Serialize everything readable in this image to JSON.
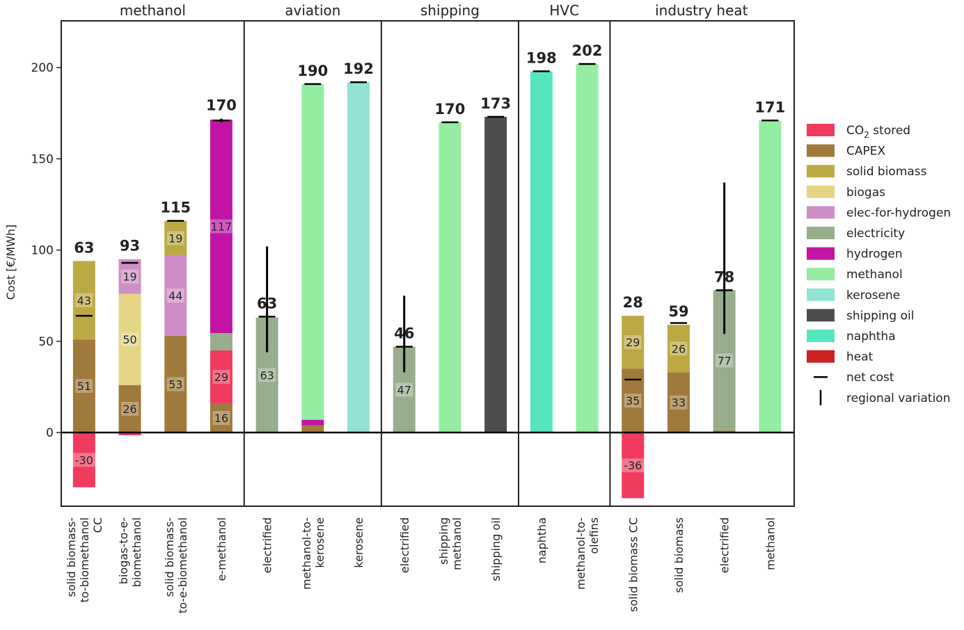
{
  "chart_data": {
    "type": "bar",
    "stacked": true,
    "ylabel": "Cost [€/MWh]",
    "ylim": [
      -40,
      225
    ],
    "yticks": [
      0,
      50,
      100,
      150,
      200
    ],
    "legend_position": "right",
    "colors": {
      "CO2 stored": "#f03b5e",
      "CAPEX": "#a07a3c",
      "solid biomass": "#bda944",
      "biogas": "#e3d584",
      "elec-for-hydrogen": "#cf8fc6",
      "electricity": "#97ad8c",
      "hydrogen": "#c214a4",
      "methanol": "#94eda1",
      "kerosene": "#93e3d4",
      "shipping oil": "#4d4d4d",
      "naphtha": "#55e6bf",
      "heat": "#cc2222"
    },
    "legend": [
      {
        "key": "CO2 stored",
        "label": "CO",
        "sub": "2",
        "label_rest": " stored",
        "kind": "patch"
      },
      {
        "key": "CAPEX",
        "label": "CAPEX",
        "kind": "patch"
      },
      {
        "key": "solid biomass",
        "label": "solid biomass",
        "kind": "patch"
      },
      {
        "key": "biogas",
        "label": "biogas",
        "kind": "patch"
      },
      {
        "key": "elec-for-hydrogen",
        "label": "elec-for-hydrogen",
        "kind": "patch"
      },
      {
        "key": "electricity",
        "label": "electricity",
        "kind": "patch"
      },
      {
        "key": "hydrogen",
        "label": "hydrogen",
        "kind": "patch"
      },
      {
        "key": "methanol",
        "label": "methanol",
        "kind": "patch"
      },
      {
        "key": "kerosene",
        "label": "kerosene",
        "kind": "patch"
      },
      {
        "key": "shipping oil",
        "label": "shipping oil",
        "kind": "patch"
      },
      {
        "key": "naphtha",
        "label": "naphtha",
        "kind": "patch"
      },
      {
        "key": "heat",
        "label": "heat",
        "kind": "patch"
      },
      {
        "key": "net cost",
        "label": "net cost",
        "kind": "hline"
      },
      {
        "key": "regional variation",
        "label": "regional variation",
        "kind": "vline"
      }
    ],
    "sectors": [
      {
        "name": "methanol",
        "bars": [
          {
            "label": [
              "solid biomass-",
              "to-biomethanol",
              "CC"
            ],
            "segments": [
              {
                "c": "CAPEX",
                "v": 51,
                "label": "51"
              },
              {
                "c": "solid biomass",
                "v": 43,
                "label": "43"
              },
              {
                "c": "CO2 stored",
                "v": -30,
                "label": "-30"
              }
            ],
            "total": 63,
            "net": 64
          },
          {
            "label": [
              "biogas-to-e-",
              "biomethanol"
            ],
            "segments": [
              {
                "c": "CAPEX",
                "v": 26,
                "label": "26"
              },
              {
                "c": "biogas",
                "v": 50,
                "label": "50"
              },
              {
                "c": "elec-for-hydrogen",
                "v": 19,
                "label": "19"
              },
              {
                "c": "CO2 stored",
                "v": -1.5
              }
            ],
            "total": 93,
            "net": 93
          },
          {
            "label": [
              "solid biomass-",
              "to-e-biomethanol"
            ],
            "segments": [
              {
                "c": "CAPEX",
                "v": 53,
                "label": "53"
              },
              {
                "c": "elec-for-hydrogen",
                "v": 44,
                "label": "44"
              },
              {
                "c": "solid biomass",
                "v": 19,
                "label": "19"
              }
            ],
            "total": 115,
            "net": 116
          },
          {
            "label": [
              "e-methanol"
            ],
            "segments": [
              {
                "c": "CAPEX",
                "v": 16,
                "label": "16"
              },
              {
                "c": "CO2 stored",
                "v": 29,
                "label": "29"
              },
              {
                "c": "electricity",
                "v": 9.5
              },
              {
                "c": "hydrogen",
                "v": 117,
                "label": "117"
              }
            ],
            "total": 170,
            "net": 171,
            "err": [
              170,
              172
            ]
          }
        ]
      },
      {
        "name": "aviation",
        "bars": [
          {
            "label": [
              "electrified"
            ],
            "segments": [
              {
                "c": "electricity",
                "v": 63,
                "label": "63"
              }
            ],
            "total": 63,
            "net": 63.5,
            "err": [
              44,
              102
            ]
          },
          {
            "label": [
              "methanol-to-",
              "kerosene"
            ],
            "segments": [
              {
                "c": "CAPEX",
                "v": 4
              },
              {
                "c": "hydrogen",
                "v": 3
              },
              {
                "c": "methanol",
                "v": 184
              }
            ],
            "total": 190,
            "net": 191
          },
          {
            "label": [
              "kerosene"
            ],
            "segments": [
              {
                "c": "kerosene",
                "v": 192
              }
            ],
            "total": 192,
            "net": 192
          }
        ]
      },
      {
        "name": "shipping",
        "bars": [
          {
            "label": [
              "electrified"
            ],
            "segments": [
              {
                "c": "electricity",
                "v": 47,
                "label": "47"
              }
            ],
            "total": 46,
            "net": 47,
            "err": [
              33,
              75
            ]
          },
          {
            "label": [
              "shipping",
              "methanol"
            ],
            "segments": [
              {
                "c": "methanol",
                "v": 170
              }
            ],
            "total": 170,
            "net": 170
          },
          {
            "label": [
              "shipping oil"
            ],
            "segments": [
              {
                "c": "shipping oil",
                "v": 173
              }
            ],
            "total": 173,
            "net": 173
          }
        ]
      },
      {
        "name": "HVC",
        "bars": [
          {
            "label": [
              "naphtha"
            ],
            "segments": [
              {
                "c": "naphtha",
                "v": 198
              }
            ],
            "total": 198,
            "net": 198
          },
          {
            "label": [
              "methanol-to-",
              "olefins"
            ],
            "segments": [
              {
                "c": "CAPEX",
                "v": 0.5
              },
              {
                "c": "methanol",
                "v": 201.5
              }
            ],
            "total": 202,
            "net": 202
          }
        ]
      },
      {
        "name": "industry heat",
        "bars": [
          {
            "label": [
              "solid biomass CC"
            ],
            "segments": [
              {
                "c": "CAPEX",
                "v": 35,
                "label": "35"
              },
              {
                "c": "solid biomass",
                "v": 29,
                "label": "29"
              },
              {
                "c": "CO2 stored",
                "v": -36,
                "label": "-36"
              }
            ],
            "total": 28,
            "net": 29
          },
          {
            "label": [
              "solid biomass"
            ],
            "segments": [
              {
                "c": "CAPEX",
                "v": 33,
                "label": "33"
              },
              {
                "c": "solid biomass",
                "v": 26,
                "label": "26"
              }
            ],
            "total": 59,
            "net": 60
          },
          {
            "label": [
              "electrified"
            ],
            "segments": [
              {
                "c": "CAPEX",
                "v": 1
              },
              {
                "c": "electricity",
                "v": 77,
                "label": "77"
              }
            ],
            "total": 78,
            "net": 78,
            "err": [
              54,
              137
            ]
          },
          {
            "label": [
              "methanol"
            ],
            "segments": [
              {
                "c": "methanol",
                "v": 171
              }
            ],
            "total": 171,
            "net": 171
          }
        ]
      }
    ]
  }
}
